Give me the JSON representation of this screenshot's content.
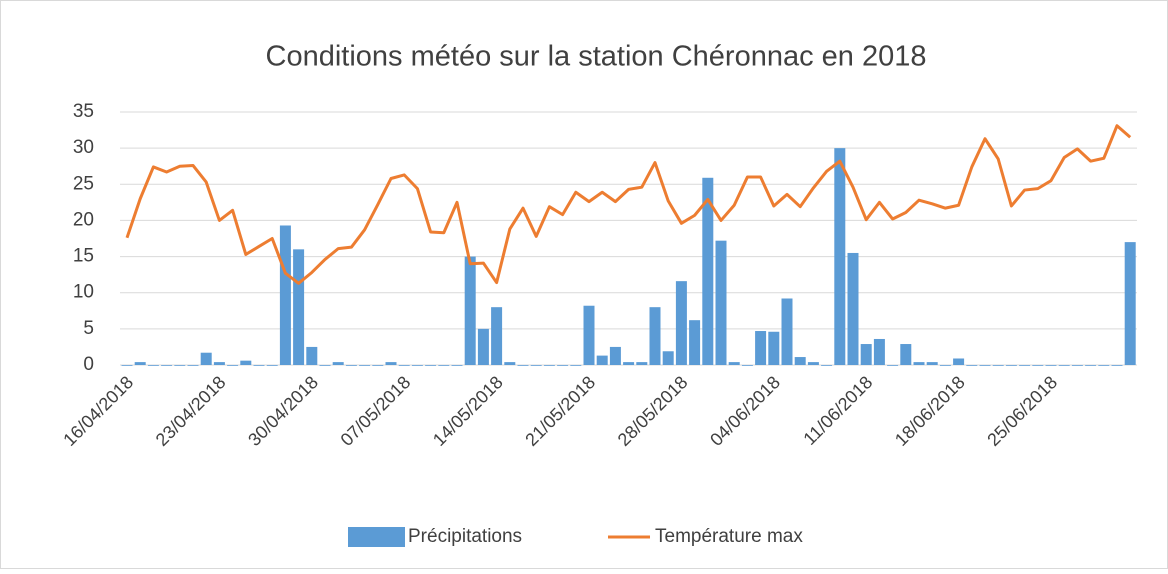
{
  "chart_data": {
    "type": "bar_line",
    "title": "Conditions météo sur la station Chéronnac en 2018",
    "categories": [
      "16/04/2018",
      null,
      null,
      null,
      null,
      null,
      null,
      "23/04/2018",
      null,
      null,
      null,
      null,
      null,
      null,
      "30/04/2018",
      null,
      null,
      null,
      null,
      null,
      null,
      "07/05/2018",
      null,
      null,
      null,
      null,
      null,
      null,
      "14/05/2018",
      null,
      null,
      null,
      null,
      null,
      null,
      "21/05/2018",
      null,
      null,
      null,
      null,
      null,
      null,
      "28/05/2018",
      null,
      null,
      null,
      null,
      null,
      null,
      "04/06/2018",
      null,
      null,
      null,
      null,
      null,
      null,
      "11/06/2018",
      null,
      null,
      null,
      null,
      null,
      null,
      "18/06/2018",
      null,
      null,
      null,
      null,
      null,
      null,
      "25/06/2018",
      null,
      null,
      null,
      null,
      null,
      null
    ],
    "series": [
      {
        "name": "Précipitations",
        "type": "bar",
        "color": "#5b9bd5",
        "values": [
          0,
          0.4,
          0,
          0,
          0,
          0,
          1.7,
          0.4,
          0,
          0.6,
          0,
          0,
          19.3,
          16,
          2.5,
          0,
          0.4,
          0,
          0,
          0,
          0.4,
          0,
          0,
          0,
          0,
          0,
          15,
          5,
          8,
          0.4,
          0,
          0,
          0,
          0,
          0,
          8.2,
          1.3,
          2.5,
          0.4,
          0.4,
          8,
          1.9,
          11.6,
          6.2,
          25.9,
          17.2,
          0.4,
          0,
          4.7,
          4.6,
          9.2,
          1.1,
          0.4,
          0,
          30,
          15.5,
          2.9,
          3.6,
          0,
          2.9,
          0.4,
          0.4,
          0,
          0.9,
          0,
          0,
          0,
          0,
          0,
          0,
          0,
          0,
          0,
          0,
          0,
          0,
          17
        ]
      },
      {
        "name": "Température max",
        "type": "line",
        "color": "#ed7d31",
        "values": [
          17.6,
          23,
          27.4,
          26.7,
          27.5,
          27.6,
          25.3,
          20,
          21.4,
          15.3,
          16.4,
          17.5,
          12.7,
          11.3,
          12.8,
          14.6,
          16.1,
          16.3,
          18.7,
          22.2,
          25.8,
          26.3,
          24.4,
          18.4,
          18.3,
          22.5,
          14,
          14.1,
          11.4,
          18.8,
          21.7,
          17.8,
          21.9,
          20.8,
          23.9,
          22.6,
          23.9,
          22.6,
          24.3,
          24.6,
          28,
          22.7,
          19.6,
          20.7,
          22.9,
          20,
          22.1,
          26,
          26,
          22,
          23.6,
          21.9,
          24.5,
          26.8,
          28.2,
          24.6,
          20.1,
          22.5,
          20.2,
          21.1,
          22.8,
          22.3,
          21.7,
          22.1,
          27.4,
          31.3,
          28.5,
          22,
          24.2,
          24.4,
          25.5,
          28.7,
          29.9,
          28.2,
          28.6,
          33.1,
          31.5
        ]
      }
    ],
    "ylim": [
      0,
      35
    ],
    "yticks": [
      0,
      5,
      10,
      15,
      20,
      25,
      30,
      35
    ],
    "grid": true,
    "legend": "bottom"
  }
}
